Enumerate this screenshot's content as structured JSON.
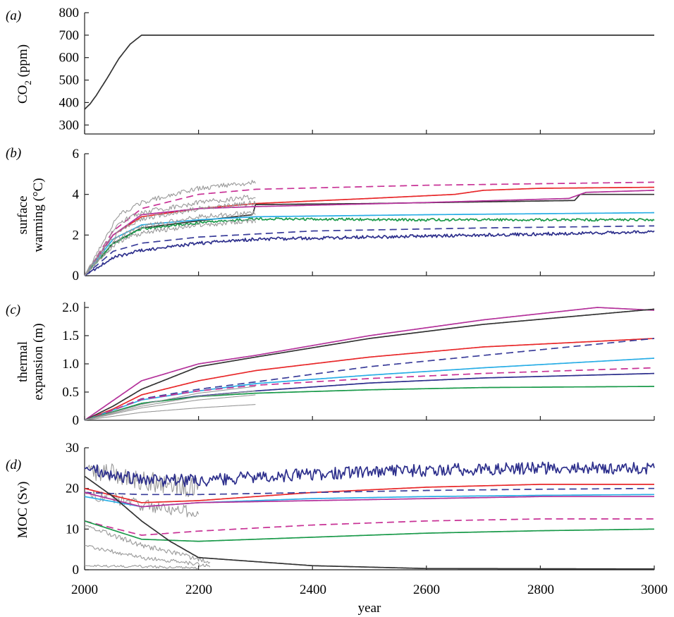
{
  "figure": {
    "xlabel": "year",
    "x_ticks": [
      "2000",
      "2200",
      "2400",
      "2600",
      "2800",
      "3000"
    ]
  },
  "chart_data": [
    {
      "type": "line",
      "panel": "(a)",
      "ylabel_main": "CO",
      "ylabel_sub": "2",
      "ylabel_rest": " (ppm)",
      "xlim": [
        2000,
        3000
      ],
      "ylim": [
        260,
        800
      ],
      "y_ticks": [
        "800",
        "700",
        "600",
        "500",
        "400",
        "300"
      ],
      "y_tick_values": [
        800,
        700,
        600,
        500,
        400,
        300
      ],
      "series": [
        {
          "color": "#333333",
          "style": "solid",
          "x": [
            2000,
            2010,
            2020,
            2040,
            2060,
            2080,
            2100,
            3000
          ],
          "y": [
            370,
            395,
            430,
            510,
            595,
            660,
            700,
            700
          ]
        }
      ]
    },
    {
      "type": "line",
      "panel": "(b)",
      "ylabel_lines": [
        "surface",
        "warming (°C)"
      ],
      "xlim": [
        2000,
        3000
      ],
      "ylim": [
        0,
        6
      ],
      "y_ticks": [
        "6",
        "4",
        "2",
        "0"
      ],
      "y_tick_values": [
        6,
        4,
        2,
        0
      ],
      "series": [
        {
          "color": "#c83296",
          "style": "dashed",
          "x": [
            2000,
            2050,
            2100,
            2200,
            2300,
            2600,
            3000
          ],
          "y": [
            0,
            2.2,
            3.3,
            4.0,
            4.25,
            4.45,
            4.6
          ]
        },
        {
          "color": "#e8282a",
          "style": "solid",
          "x": [
            2000,
            2050,
            2100,
            2200,
            2300,
            2500,
            2650,
            2700,
            2800,
            3000
          ],
          "y": [
            0,
            2.0,
            2.9,
            3.3,
            3.55,
            3.8,
            4.0,
            4.2,
            4.3,
            4.35
          ]
        },
        {
          "color": "#333333",
          "style": "solid",
          "x": [
            2000,
            2050,
            2100,
            2200,
            2295,
            2300,
            2500,
            2860,
            2870,
            3000
          ],
          "y": [
            0,
            1.6,
            2.35,
            2.7,
            3.0,
            3.5,
            3.55,
            3.7,
            4.0,
            4.0
          ]
        },
        {
          "color": "#b4329b",
          "style": "solid",
          "x": [
            2000,
            2050,
            2100,
            2200,
            2300,
            2600,
            2850,
            2880,
            3000
          ],
          "y": [
            0,
            2.0,
            3.0,
            3.3,
            3.4,
            3.6,
            3.8,
            4.1,
            4.2
          ]
        },
        {
          "color": "#2aaee6",
          "style": "solid",
          "x": [
            2000,
            2050,
            2100,
            2200,
            2300,
            2600,
            3000
          ],
          "y": [
            0,
            1.8,
            2.5,
            2.75,
            2.9,
            3.0,
            3.1
          ]
        },
        {
          "color": "#1a9a4a",
          "style": "solid",
          "noise": 0.06,
          "x": [
            2000,
            2050,
            2100,
            2200,
            2300,
            2600,
            3000
          ],
          "y": [
            0,
            1.6,
            2.3,
            2.6,
            2.8,
            2.75,
            2.75
          ]
        },
        {
          "color": "#3a3d9a",
          "style": "dashed",
          "x": [
            2000,
            2050,
            2100,
            2200,
            2400,
            2700,
            3000
          ],
          "y": [
            0,
            1.2,
            1.6,
            1.9,
            2.2,
            2.35,
            2.45
          ]
        },
        {
          "color": "#2d2f8c",
          "style": "solid",
          "noise": 0.08,
          "x": [
            2000,
            2050,
            2100,
            2200,
            2300,
            2600,
            3000
          ],
          "y": [
            0,
            0.9,
            1.25,
            1.6,
            1.8,
            1.95,
            2.15
          ]
        },
        {
          "color": "#999999",
          "style": "solid",
          "noise": 0.12,
          "x": [
            2000,
            2060,
            2100,
            2200,
            2300
          ],
          "y": [
            0,
            3.0,
            3.6,
            4.3,
            4.6
          ]
        },
        {
          "color": "#999999",
          "style": "solid",
          "noise": 0.12,
          "x": [
            2000,
            2060,
            2100,
            2200,
            2300
          ],
          "y": [
            0,
            2.6,
            3.1,
            3.6,
            3.9
          ]
        },
        {
          "color": "#999999",
          "style": "solid",
          "noise": 0.12,
          "x": [
            2000,
            2060,
            2100,
            2200,
            2300
          ],
          "y": [
            0,
            2.2,
            2.8,
            3.3,
            3.6
          ]
        },
        {
          "color": "#999999",
          "style": "solid",
          "noise": 0.12,
          "x": [
            2000,
            2060,
            2100,
            2200,
            2300
          ],
          "y": [
            0,
            1.9,
            2.4,
            2.9,
            3.1
          ]
        },
        {
          "color": "#999999",
          "style": "solid",
          "noise": 0.12,
          "x": [
            2000,
            2060,
            2100,
            2200,
            2300
          ],
          "y": [
            0,
            1.7,
            2.1,
            2.5,
            2.7
          ]
        }
      ]
    },
    {
      "type": "line",
      "panel": "(c)",
      "ylabel_lines": [
        "thermal",
        "expansion (m)"
      ],
      "xlim": [
        2000,
        3000
      ],
      "ylim": [
        0,
        2.1
      ],
      "y_ticks": [
        "2.0",
        "1.5",
        "1.0",
        "0.5",
        "0"
      ],
      "y_tick_values": [
        2.0,
        1.5,
        1.0,
        0.5,
        0
      ],
      "series": [
        {
          "color": "#b4329b",
          "style": "solid",
          "x": [
            2000,
            2050,
            2100,
            2200,
            2300,
            2500,
            2700,
            2900,
            3000
          ],
          "y": [
            0,
            0.35,
            0.7,
            1.0,
            1.15,
            1.5,
            1.78,
            2.0,
            1.95
          ]
        },
        {
          "color": "#333333",
          "style": "solid",
          "x": [
            2000,
            2050,
            2100,
            2200,
            2300,
            2500,
            2700,
            2900,
            3000
          ],
          "y": [
            0,
            0.25,
            0.55,
            0.95,
            1.12,
            1.45,
            1.7,
            1.88,
            1.97
          ]
        },
        {
          "color": "#e8282a",
          "style": "solid",
          "x": [
            2000,
            2050,
            2100,
            2200,
            2300,
            2500,
            2700,
            3000
          ],
          "y": [
            0,
            0.2,
            0.45,
            0.7,
            0.88,
            1.12,
            1.3,
            1.45
          ]
        },
        {
          "color": "#3a3d9a",
          "style": "dashed",
          "x": [
            2000,
            2050,
            2100,
            2200,
            2300,
            2500,
            2700,
            3000
          ],
          "y": [
            0,
            0.18,
            0.38,
            0.55,
            0.68,
            0.95,
            1.15,
            1.45
          ]
        },
        {
          "color": "#2aaee6",
          "style": "solid",
          "x": [
            2000,
            2050,
            2100,
            2200,
            2300,
            2500,
            2700,
            3000
          ],
          "y": [
            0,
            0.18,
            0.36,
            0.52,
            0.65,
            0.8,
            0.93,
            1.1
          ]
        },
        {
          "color": "#c83296",
          "style": "dashed",
          "x": [
            2000,
            2050,
            2100,
            2200,
            2300,
            2500,
            2700,
            3000
          ],
          "y": [
            0,
            0.18,
            0.37,
            0.52,
            0.62,
            0.74,
            0.83,
            0.93
          ]
        },
        {
          "color": "#2d2f8c",
          "style": "solid",
          "x": [
            2000,
            2050,
            2100,
            2200,
            2300,
            2500,
            2700,
            3000
          ],
          "y": [
            0,
            0.15,
            0.3,
            0.43,
            0.52,
            0.66,
            0.75,
            0.83
          ]
        },
        {
          "color": "#1a9a4a",
          "style": "solid",
          "x": [
            2000,
            2050,
            2100,
            2200,
            2300,
            2500,
            2700,
            3000
          ],
          "y": [
            0,
            0.15,
            0.3,
            0.42,
            0.48,
            0.54,
            0.58,
            0.6
          ]
        },
        {
          "color": "#999999",
          "style": "solid",
          "x": [
            2000,
            2100,
            2200,
            2300
          ],
          "y": [
            0,
            0.28,
            0.48,
            0.6
          ]
        },
        {
          "color": "#999999",
          "style": "solid",
          "x": [
            2000,
            2100,
            2200,
            2300
          ],
          "y": [
            0,
            0.25,
            0.42,
            0.52
          ]
        },
        {
          "color": "#999999",
          "style": "solid",
          "x": [
            2000,
            2100,
            2200,
            2300
          ],
          "y": [
            0,
            0.22,
            0.36,
            0.45
          ]
        },
        {
          "color": "#999999",
          "style": "solid",
          "x": [
            2000,
            2100,
            2200,
            2300
          ],
          "y": [
            0,
            0.14,
            0.22,
            0.28
          ]
        }
      ]
    },
    {
      "type": "line",
      "panel": "(d)",
      "ylabel_lines": [
        "MOC (Sv)"
      ],
      "xlim": [
        2000,
        3000
      ],
      "ylim": [
        0,
        30
      ],
      "y_ticks": [
        "30",
        "20",
        "10",
        "0"
      ],
      "y_tick_values": [
        30,
        20,
        10,
        0
      ],
      "series": [
        {
          "color": "#999999",
          "style": "solid",
          "noise": 2.5,
          "x": [
            2000,
            2100,
            2200
          ],
          "y": [
            25,
            22,
            20
          ]
        },
        {
          "color": "#999999",
          "style": "solid",
          "noise": 1.5,
          "x": [
            2000,
            2100,
            2200
          ],
          "y": [
            19,
            16,
            14
          ]
        },
        {
          "color": "#999999",
          "style": "solid",
          "noise": 0.6,
          "x": [
            2000,
            2100,
            2220
          ],
          "y": [
            11,
            6,
            2
          ]
        },
        {
          "color": "#999999",
          "style": "solid",
          "noise": 0.5,
          "x": [
            2000,
            2100,
            2220
          ],
          "y": [
            6,
            3,
            1
          ]
        },
        {
          "color": "#999999",
          "style": "solid",
          "noise": 0.3,
          "x": [
            2000,
            2100,
            2200
          ],
          "y": [
            1,
            0.8,
            0.5
          ]
        },
        {
          "color": "#2d2f8c",
          "style": "solid",
          "noise": 1.5,
          "x": [
            2000,
            2100,
            2200,
            2400,
            2600,
            2800,
            3000
          ],
          "y": [
            25,
            22,
            22,
            23.5,
            24.5,
            25,
            25
          ]
        },
        {
          "color": "#e8282a",
          "style": "solid",
          "x": [
            2000,
            2100,
            2200,
            2400,
            2600,
            2800,
            3000
          ],
          "y": [
            20,
            16.5,
            17,
            19,
            20.3,
            21,
            21
          ]
        },
        {
          "color": "#3a3d9a",
          "style": "dashed",
          "x": [
            2000,
            2100,
            2200,
            2400,
            2600,
            2800,
            3000
          ],
          "y": [
            19,
            18.5,
            18.5,
            19,
            19.5,
            19.8,
            20
          ]
        },
        {
          "color": "#2aaee6",
          "style": "solid",
          "x": [
            2000,
            2100,
            2200,
            2400,
            2600,
            2800,
            3000
          ],
          "y": [
            18,
            15.5,
            16.5,
            17.5,
            18,
            18.3,
            18.5
          ]
        },
        {
          "color": "#b4329b",
          "style": "solid",
          "x": [
            2000,
            2100,
            2200,
            2400,
            2600,
            2800,
            3000
          ],
          "y": [
            19,
            15.5,
            16.5,
            17,
            17.5,
            18,
            18
          ]
        },
        {
          "color": "#c83296",
          "style": "dashed",
          "x": [
            2000,
            2100,
            2200,
            2400,
            2600,
            2800,
            3000
          ],
          "y": [
            12,
            8.5,
            9.5,
            11,
            12,
            12.5,
            12.5
          ]
        },
        {
          "color": "#1a9a4a",
          "style": "solid",
          "x": [
            2000,
            2100,
            2200,
            2400,
            2600,
            2800,
            3000
          ],
          "y": [
            12,
            7.5,
            7,
            8,
            9,
            9.6,
            10
          ]
        },
        {
          "color": "#333333",
          "style": "solid",
          "x": [
            2000,
            2050,
            2100,
            2150,
            2200,
            2250,
            2300,
            2400,
            2600,
            3000
          ],
          "y": [
            23,
            18,
            12,
            7,
            3,
            2.5,
            2,
            1,
            0.3,
            0.2
          ]
        }
      ]
    }
  ]
}
